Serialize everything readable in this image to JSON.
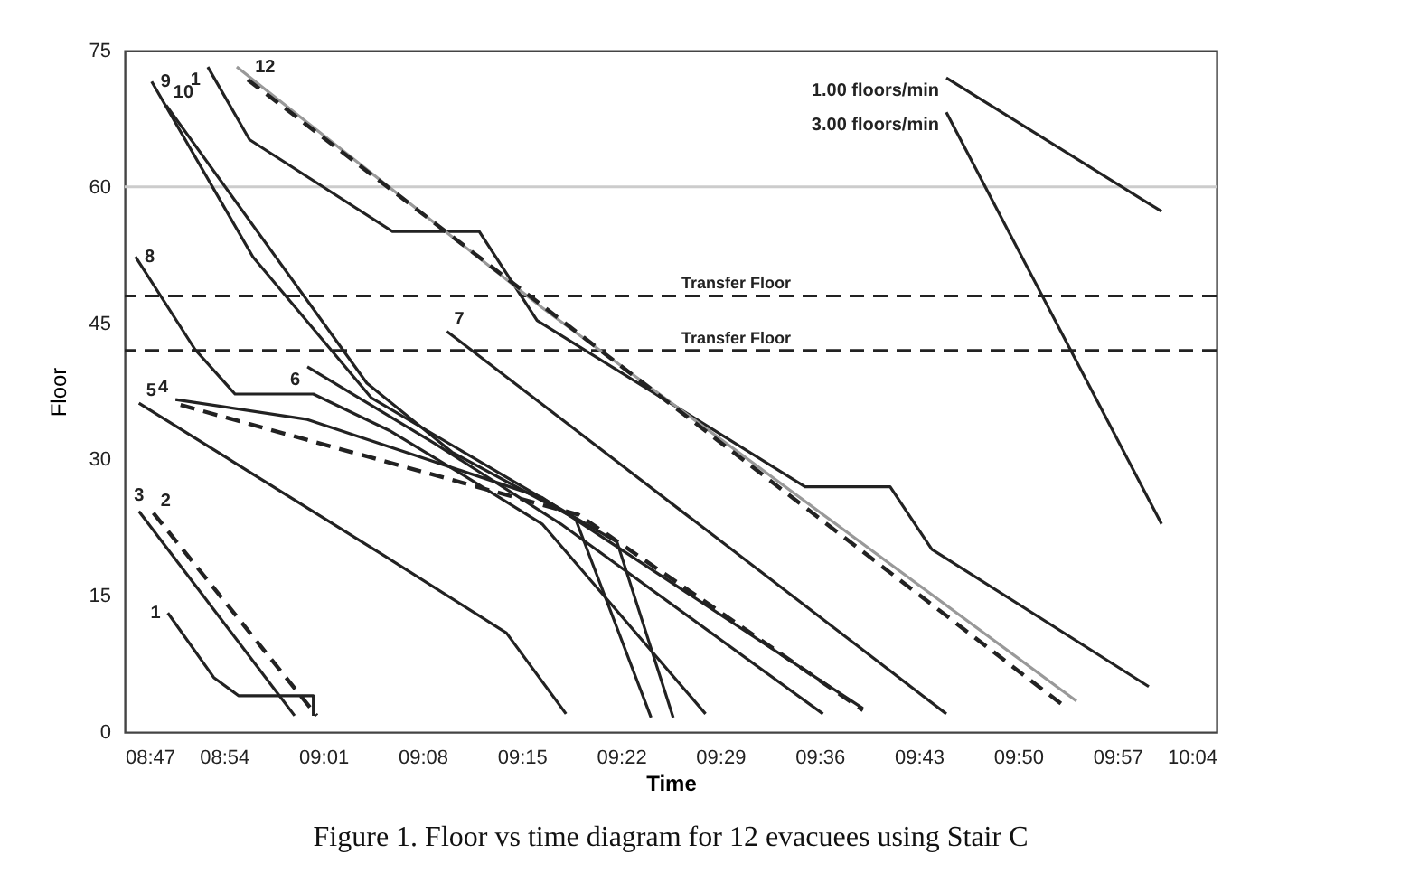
{
  "chart_data": {
    "type": "line",
    "title": "Figure 1. Floor vs time diagram for 12 evacuees using Stair C",
    "xlabel": "Time",
    "ylabel": "Floor",
    "xlim": [
      8.78333,
      10.06667
    ],
    "ylim": [
      0,
      75
    ],
    "xticks": [
      {
        "value": 8.78333,
        "label": "08:47"
      },
      {
        "value": 8.9,
        "label": "08:54"
      },
      {
        "value": 9.01667,
        "label": "09:01"
      },
      {
        "value": 9.13333,
        "label": "09:08"
      },
      {
        "value": 9.25,
        "label": "09:15"
      },
      {
        "value": 9.36667,
        "label": "09:22"
      },
      {
        "value": 9.48333,
        "label": "09:29"
      },
      {
        "value": 9.6,
        "label": "09:36"
      },
      {
        "value": 9.71667,
        "label": "09:43"
      },
      {
        "value": 9.83333,
        "label": "09:50"
      },
      {
        "value": 9.95,
        "label": "09:57"
      },
      {
        "value": 10.06667,
        "label": "10:04"
      }
    ],
    "yticks": [
      0,
      15,
      30,
      45,
      60,
      75
    ],
    "ref_lines": [
      {
        "axis": "y",
        "value": 60,
        "color": "#cccccc"
      },
      {
        "axis": "y",
        "value": 48,
        "label": "Transfer Floor",
        "line_style": "dashed",
        "color": "#222222"
      },
      {
        "axis": "y",
        "value": 42,
        "label": "Transfer Floor",
        "line_style": "dashed",
        "color": "#222222"
      }
    ],
    "series": [
      {
        "name": "1",
        "color": "#222222",
        "x": [
          8.881,
          8.93,
          9.098,
          9.2,
          9.268,
          9.583,
          9.683,
          9.732,
          9.987
        ],
        "values": [
          73.2,
          65.2,
          55.1,
          55.1,
          45.3,
          27.0,
          27.0,
          20.1,
          5.0
        ]
      },
      {
        "color": "#999999",
        "x": [
          8.915,
          9.274,
          9.902
        ],
        "values": [
          73.2,
          46.7,
          3.4
        ]
      },
      {
        "name": "12",
        "color": "#222222",
        "line_style": "dashed",
        "x": [
          8.928,
          9.891
        ],
        "values": [
          71.8,
          2.6
        ]
      },
      {
        "name": "9",
        "color": "#222222",
        "x": [
          8.815,
          8.934,
          9.073,
          9.2,
          9.362,
          9.428
        ],
        "values": [
          71.6,
          52.3,
          36.8,
          29.8,
          20.9,
          1.6
        ]
      },
      {
        "name": "10",
        "color": "#222222",
        "x": [
          8.832,
          9.068,
          9.168,
          9.313,
          9.402
        ],
        "values": [
          69.0,
          38.4,
          30.8,
          23.5,
          1.6
        ]
      },
      {
        "name": "8",
        "color": "#222222",
        "x": [
          8.796,
          8.866,
          8.913,
          9.005,
          9.094,
          9.179,
          9.274,
          9.466
        ],
        "values": [
          52.3,
          42.1,
          37.2,
          37.2,
          33.2,
          28.4,
          22.9,
          2.0
        ]
      },
      {
        "name": "6",
        "color": "#222222",
        "x": [
          8.998,
          9.147,
          9.296,
          9.604
        ],
        "values": [
          40.2,
          31.8,
          22.9,
          2.0
        ]
      },
      {
        "name": "7",
        "color": "#222222",
        "x": [
          9.162,
          9.749
        ],
        "values": [
          44.1,
          2.0
        ]
      },
      {
        "name": "4",
        "color": "#222222",
        "x": [
          8.843,
          8.998,
          9.274,
          9.651
        ],
        "values": [
          36.6,
          34.4,
          25.8,
          2.6
        ]
      },
      {
        "color": "#222222",
        "line_style": "dashed",
        "x": [
          8.849,
          9.317,
          9.651
        ],
        "values": [
          36.0,
          23.9,
          2.4
        ]
      },
      {
        "name": "5",
        "color": "#222222",
        "x": [
          8.8,
          9.09,
          9.232,
          9.302
        ],
        "values": [
          36.2,
          19.3,
          10.9,
          2.0
        ]
      },
      {
        "name": "3",
        "color": "#222222",
        "x": [
          8.8,
          8.983
        ],
        "values": [
          24.3,
          1.8
        ]
      },
      {
        "name": "2",
        "color": "#222222",
        "line_style": "dashed",
        "x": [
          8.817,
          9.009
        ],
        "values": [
          24.1,
          1.8
        ]
      },
      {
        "name": "1",
        "color": "#222222",
        "x": [
          8.834,
          8.888,
          8.917,
          9.005,
          9.005
        ],
        "values": [
          13.1,
          6.0,
          4.0,
          4.0,
          1.8
        ]
      },
      {
        "name": "1.00 floors/min",
        "color": "#222222",
        "x": [
          9.749,
          10.002
        ],
        "values": [
          72.0,
          57.3
        ]
      },
      {
        "name": "3.00 floors/min",
        "color": "#222222",
        "x": [
          9.749,
          10.002
        ],
        "values": [
          68.2,
          22.9
        ]
      }
    ]
  }
}
